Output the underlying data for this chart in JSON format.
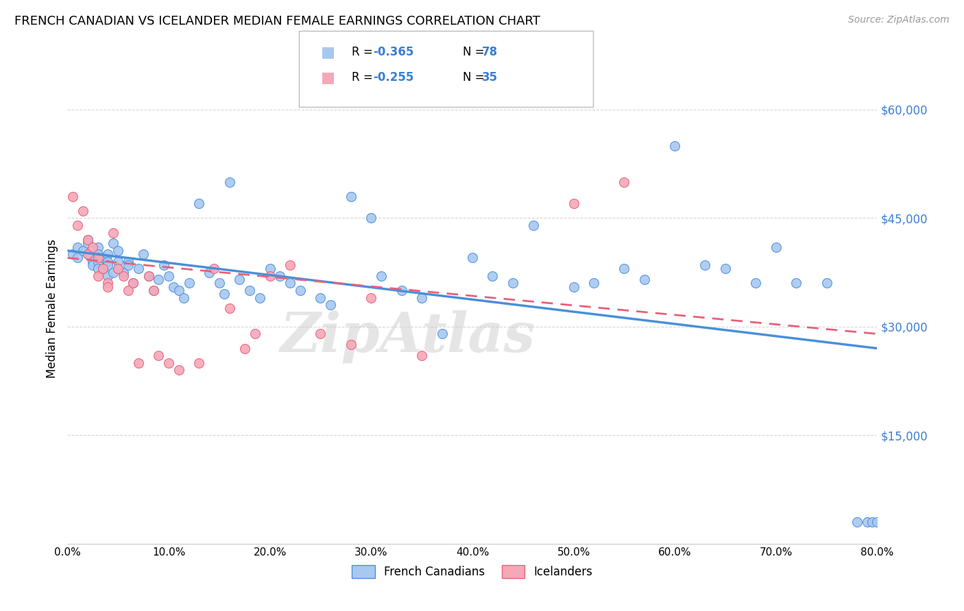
{
  "title": "FRENCH CANADIAN VS ICELANDER MEDIAN FEMALE EARNINGS CORRELATION CHART",
  "source": "Source: ZipAtlas.com",
  "ylabel": "Median Female Earnings",
  "yticks": [
    0,
    15000,
    30000,
    45000,
    60000
  ],
  "ytick_labels": [
    "",
    "$15,000",
    "$30,000",
    "$45,000",
    "$60,000"
  ],
  "ymin": 0,
  "ymax": 65000,
  "xmin": 0.0,
  "xmax": 0.8,
  "xticks": [
    0.0,
    0.1,
    0.2,
    0.3,
    0.4,
    0.5,
    0.6,
    0.7,
    0.8
  ],
  "xtick_labels": [
    "0.0%",
    "10.0%",
    "20.0%",
    "30.0%",
    "40.0%",
    "50.0%",
    "60.0%",
    "70.0%",
    "80.0%"
  ],
  "legend_label_blue": "French Canadians",
  "legend_label_pink": "Icelanders",
  "color_blue": "#A8C8F0",
  "color_pink": "#F5A8B8",
  "color_blue_line": "#4A90D9",
  "color_pink_line": "#E8607A",
  "color_blue_text": "#3A7FD4",
  "watermark": "ZipAtlas",
  "trendline_blue_x0": 0.0,
  "trendline_blue_y0": 40500,
  "trendline_blue_x1": 0.8,
  "trendline_blue_y1": 27000,
  "trendline_pink_x0": 0.0,
  "trendline_pink_y0": 39500,
  "trendline_pink_x1": 0.8,
  "trendline_pink_y1": 29000,
  "blue_x": [
    0.005,
    0.01,
    0.01,
    0.015,
    0.02,
    0.02,
    0.02,
    0.025,
    0.025,
    0.03,
    0.03,
    0.03,
    0.03,
    0.035,
    0.035,
    0.04,
    0.04,
    0.04,
    0.04,
    0.045,
    0.045,
    0.05,
    0.05,
    0.05,
    0.055,
    0.06,
    0.06,
    0.065,
    0.07,
    0.075,
    0.08,
    0.085,
    0.09,
    0.095,
    0.1,
    0.105,
    0.11,
    0.115,
    0.12,
    0.13,
    0.14,
    0.15,
    0.155,
    0.16,
    0.17,
    0.18,
    0.19,
    0.2,
    0.21,
    0.22,
    0.23,
    0.25,
    0.26,
    0.28,
    0.3,
    0.31,
    0.33,
    0.35,
    0.37,
    0.4,
    0.42,
    0.44,
    0.46,
    0.5,
    0.52,
    0.55,
    0.57,
    0.6,
    0.63,
    0.65,
    0.68,
    0.7,
    0.72,
    0.75,
    0.78,
    0.79,
    0.795,
    0.8
  ],
  "blue_y": [
    40000,
    41000,
    39500,
    40500,
    42000,
    41500,
    40000,
    39000,
    38500,
    41000,
    40000,
    39000,
    38000,
    39500,
    38000,
    40000,
    39000,
    38500,
    37000,
    41500,
    37500,
    39000,
    40500,
    38000,
    37500,
    39000,
    38500,
    36000,
    38000,
    40000,
    37000,
    35000,
    36500,
    38500,
    37000,
    35500,
    35000,
    34000,
    36000,
    47000,
    37500,
    36000,
    34500,
    50000,
    36500,
    35000,
    34000,
    38000,
    37000,
    36000,
    35000,
    34000,
    33000,
    48000,
    45000,
    37000,
    35000,
    34000,
    29000,
    39500,
    37000,
    36000,
    44000,
    35500,
    36000,
    38000,
    36500,
    55000,
    38500,
    38000,
    36000,
    41000,
    36000,
    36000,
    3000,
    3000,
    3000,
    3000
  ],
  "pink_x": [
    0.005,
    0.01,
    0.015,
    0.02,
    0.02,
    0.025,
    0.03,
    0.03,
    0.035,
    0.04,
    0.04,
    0.045,
    0.05,
    0.055,
    0.06,
    0.065,
    0.07,
    0.08,
    0.085,
    0.09,
    0.1,
    0.11,
    0.13,
    0.145,
    0.16,
    0.175,
    0.185,
    0.2,
    0.22,
    0.25,
    0.28,
    0.3,
    0.35,
    0.5,
    0.55
  ],
  "pink_y": [
    48000,
    44000,
    46000,
    42000,
    40000,
    41000,
    39500,
    37000,
    38000,
    36000,
    35500,
    43000,
    38000,
    37000,
    35000,
    36000,
    25000,
    37000,
    35000,
    26000,
    25000,
    24000,
    25000,
    38000,
    32500,
    27000,
    29000,
    37000,
    38500,
    29000,
    27500,
    34000,
    26000,
    47000,
    50000
  ]
}
